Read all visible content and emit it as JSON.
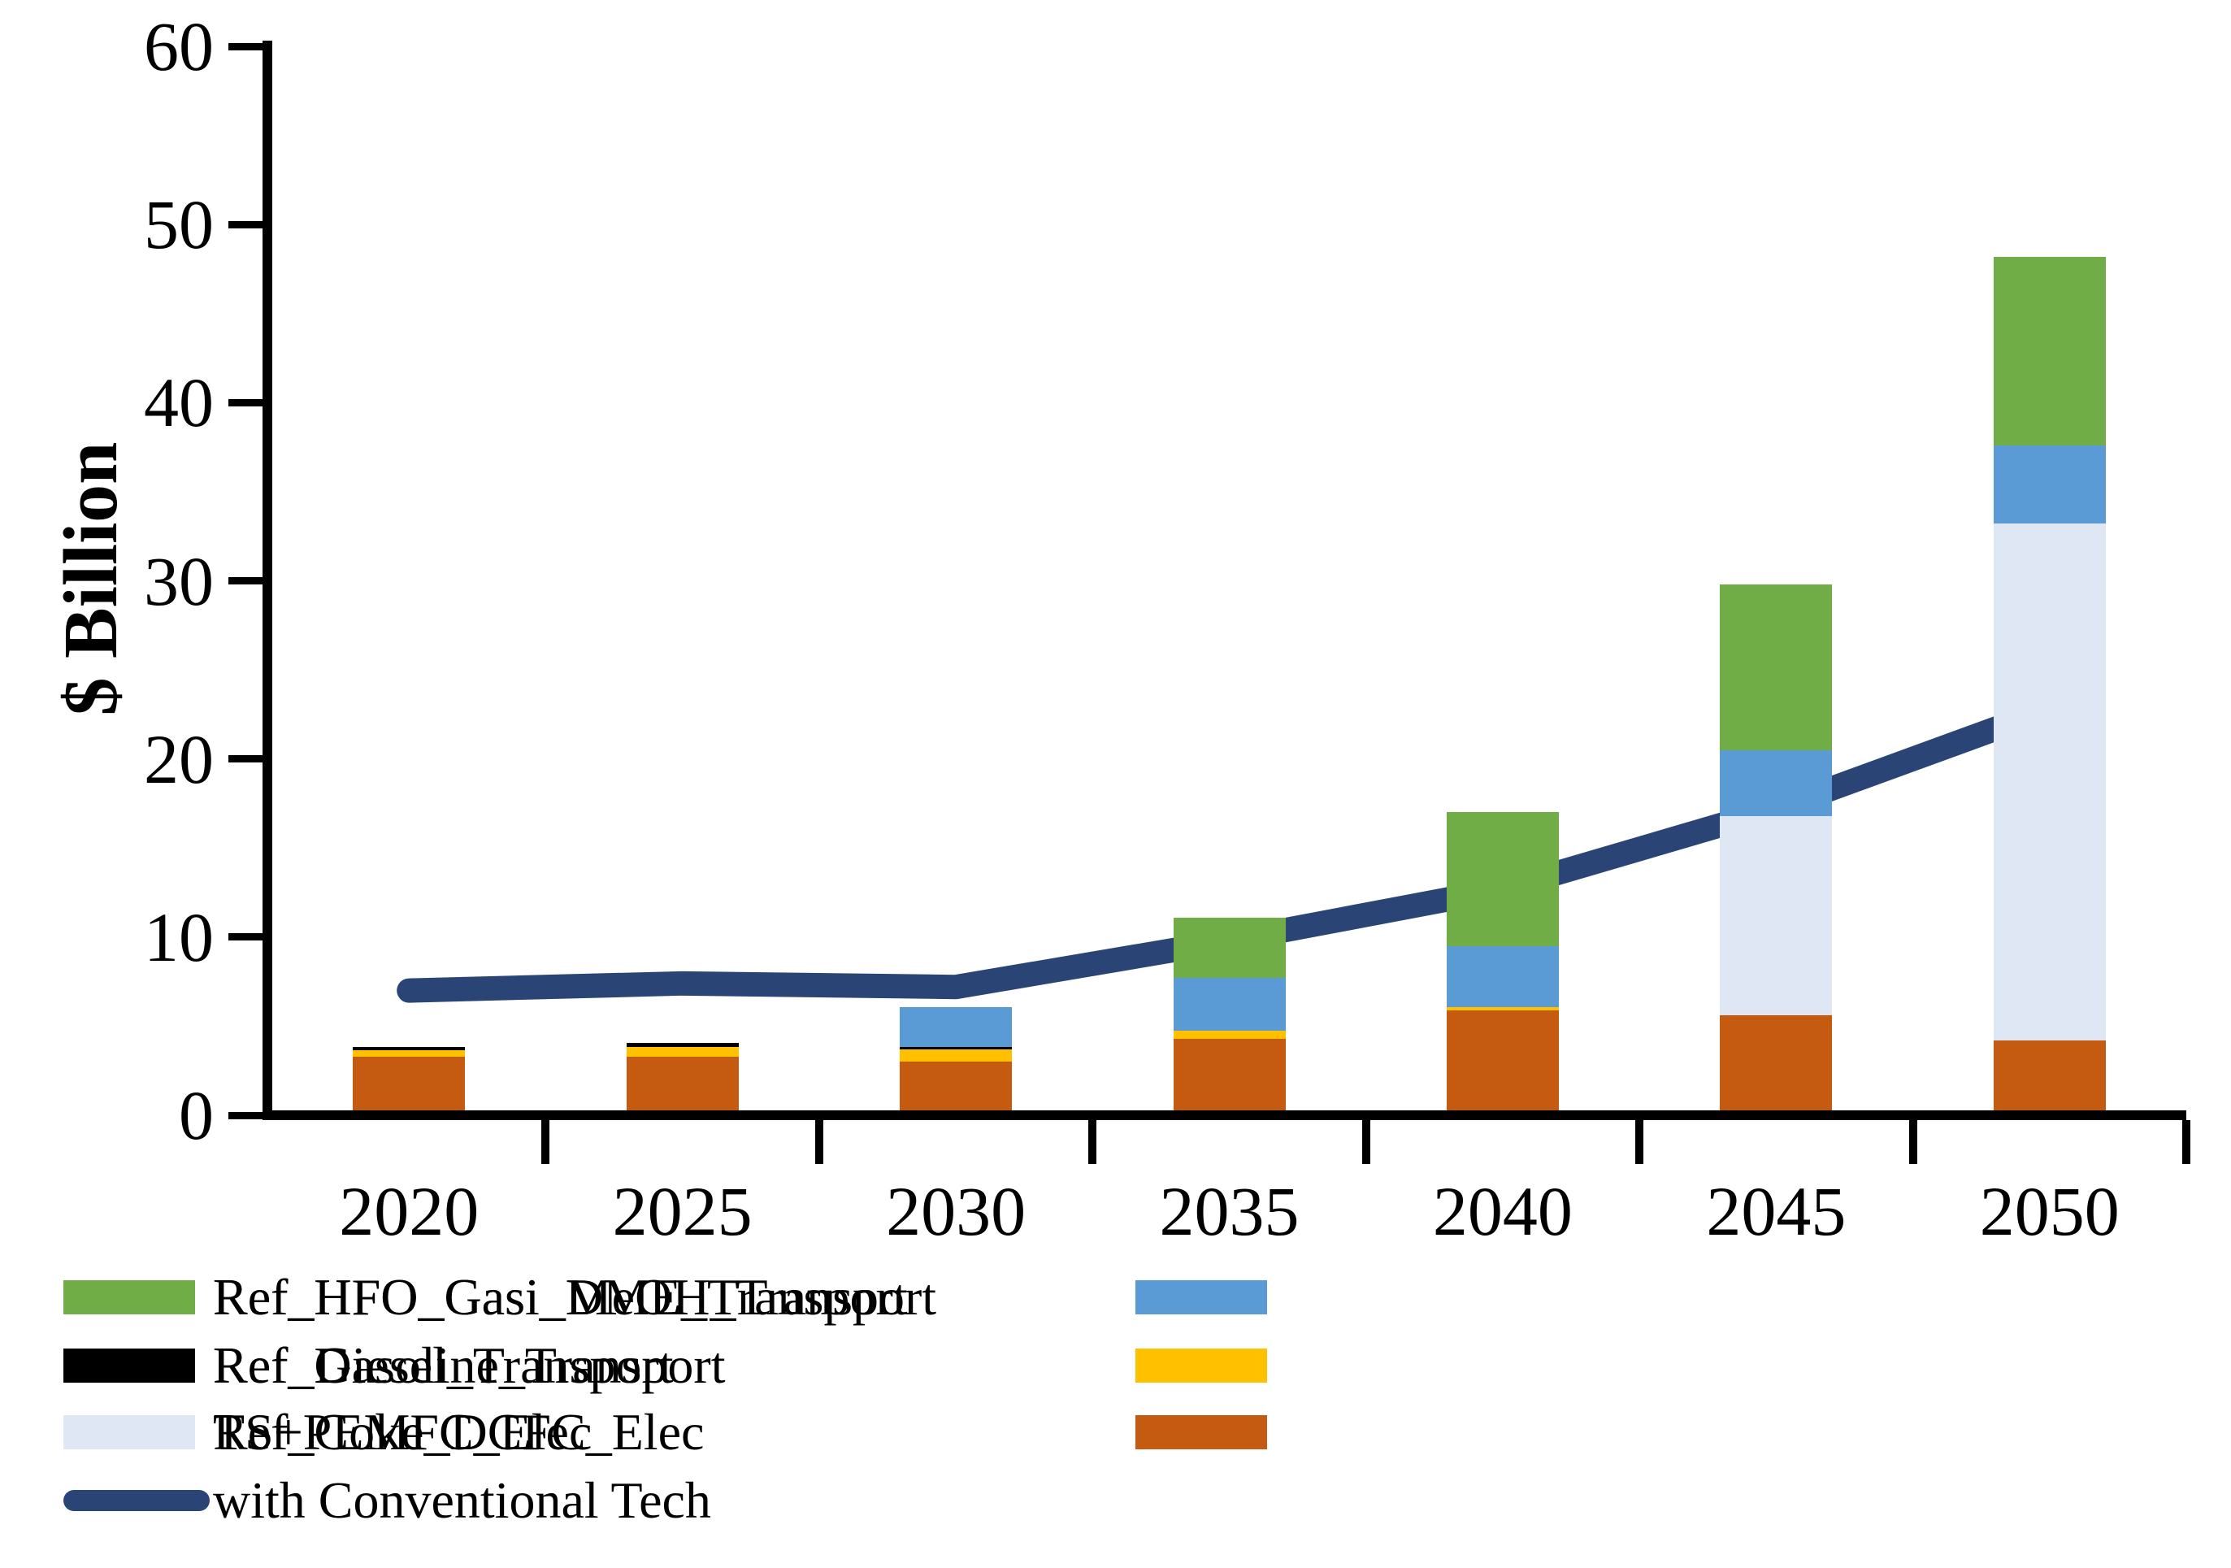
{
  "chart_data": {
    "type": "bar",
    "subtype": "stacked-bars-with-line-overlay",
    "title": "",
    "xlabel": "",
    "ylabel": "$ Billion",
    "ylim": [
      0,
      60
    ],
    "yticks": [
      0,
      10,
      20,
      30,
      40,
      50,
      60
    ],
    "grid": "off",
    "legend_position": "bottom-two-columns",
    "categories": [
      "2020",
      "2025",
      "2030",
      "2035",
      "2040",
      "2045",
      "2050"
    ],
    "series": [
      {
        "name": "Ref_Coke_DCFC_Elec",
        "type": "bar",
        "color": "#C55A11",
        "values": [
          3.3,
          3.3,
          3.0,
          4.3,
          5.9,
          5.6,
          4.2
        ]
      },
      {
        "name": "TS+PEMFC_Elec",
        "type": "bar",
        "color": "#DEE7F3",
        "values": [
          0,
          0,
          0,
          0,
          0,
          11.2,
          29.0
        ]
      },
      {
        "name": "Ref_Gasoline_Transport",
        "type": "bar",
        "color": "#FFC000",
        "values": [
          0.35,
          0.55,
          0.7,
          0.45,
          0.15,
          0,
          0
        ]
      },
      {
        "name": "Ref_Diesel_Transport",
        "type": "bar",
        "color": "#000000",
        "values": [
          0.2,
          0.2,
          0.15,
          0,
          0,
          0,
          0
        ]
      },
      {
        "name": "Ref_HFO_Gasi_DME_Transport",
        "type": "bar",
        "color": "#5B9BD5",
        "values": [
          0,
          0,
          2.2,
          2.95,
          3.45,
          3.7,
          4.4
        ]
      },
      {
        "name": "Ref_HFO_Gasi_MeOH_Transport",
        "type": "bar",
        "color": "#70AD47",
        "values": [
          0,
          0,
          0,
          3.4,
          7.5,
          9.3,
          10.6
        ]
      }
    ],
    "bar_totals": [
      3.85,
      4.05,
      6.05,
      11.1,
      17.0,
      29.8,
      48.2
    ],
    "line_series": {
      "name": "with Conventional Tech",
      "color": "#2A4475",
      "values": [
        7.0,
        7.4,
        7.2,
        9.8,
        12.7,
        17.2,
        22.8
      ]
    },
    "legend": {
      "items": [
        {
          "label": "Ref_HFO_Gasi_MeOH_Transport",
          "color": "#70AD47",
          "marker": "rect",
          "col": 0,
          "row": 0
        },
        {
          "label": "Ref_HFO_Gasi_DME_Transport",
          "color": "#5B9BD5",
          "marker": "rect",
          "col": 1,
          "row": 0
        },
        {
          "label": "Ref_Diesel_Transport",
          "color": "#000000",
          "marker": "rect",
          "col": 0,
          "row": 1
        },
        {
          "label": "Ref_Gasoline_Transport",
          "color": "#FFC000",
          "marker": "rect",
          "col": 1,
          "row": 1
        },
        {
          "label": "TS+PEMFC_Elec",
          "color": "#DEE7F3",
          "marker": "rect",
          "col": 0,
          "row": 2
        },
        {
          "label": "Ref_Coke_DCFC_Elec",
          "color": "#C55A11",
          "marker": "rect",
          "col": 1,
          "row": 2
        },
        {
          "label": "with Conventional Tech",
          "color": "#2A4475",
          "marker": "line",
          "col": 0,
          "row": 3
        }
      ]
    }
  }
}
